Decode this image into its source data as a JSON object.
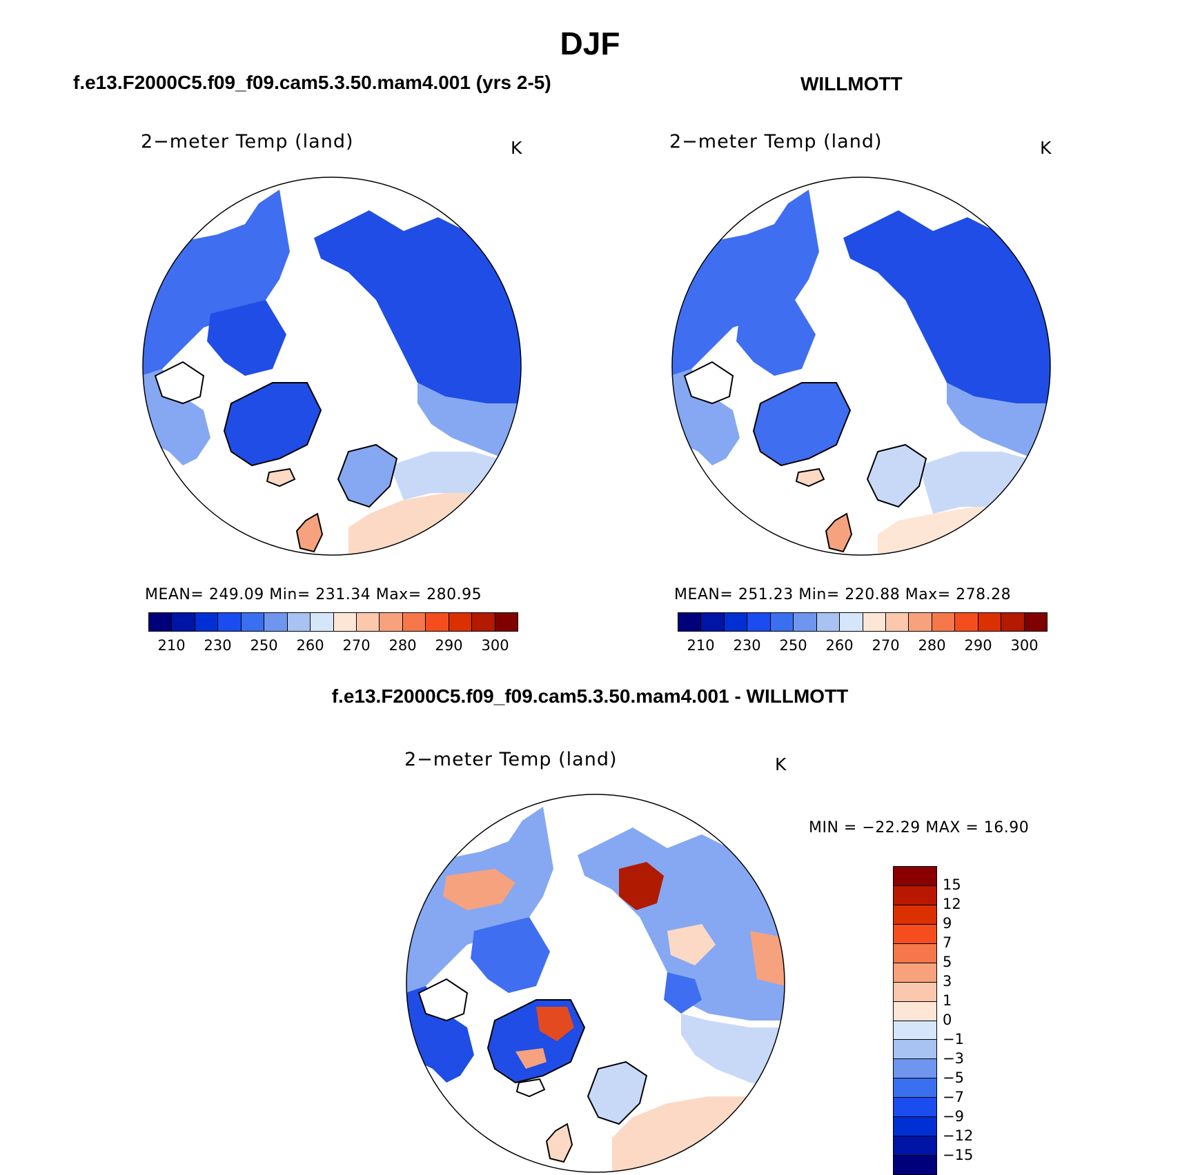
{
  "header": {
    "title": "DJF",
    "panel_left_title": "f.e13.F2000C5.f09_f09.cam5.3.50.mam4.001 (yrs 2-5)",
    "panel_right_title": "WILLMOTT",
    "panel_diff_title": "f.e13.F2000C5.f09_f09.cam5.3.50.mam4.001 - WILLMOTT"
  },
  "panels": {
    "left": {
      "variable": "2−meter Temp (land)",
      "unit": "K",
      "stats": "MEAN=  249.09    Min=  231.34    Max=  280.95"
    },
    "right": {
      "variable": "2−meter Temp (land)",
      "unit": "K",
      "stats": "MEAN=  251.23    Min=  220.88    Max=  278.28"
    },
    "diff": {
      "variable": "2−meter Temp (land)",
      "unit": "K",
      "stats": "MIN  =  −22.29  MAX  =    16.90"
    }
  },
  "colorbars": {
    "absolute": {
      "colors": [
        "#00007a",
        "#0014a6",
        "#0030d4",
        "#1a4cf0",
        "#3a6ff0",
        "#6f96ee",
        "#a8c2f2",
        "#d6e6fa",
        "#fde6d6",
        "#fbc8ae",
        "#f7a27c",
        "#f6784a",
        "#f54e1c",
        "#db3000",
        "#b31a00",
        "#800000"
      ],
      "tick_labels": [
        "210",
        "230",
        "250",
        "260",
        "270",
        "280",
        "290",
        "300"
      ]
    },
    "diff": {
      "colors_top_to_bottom": [
        "#8a0000",
        "#b81800",
        "#db3000",
        "#f54e1c",
        "#f6784a",
        "#f7a27c",
        "#fbc8ae",
        "#fde6d6",
        "#d6e6fa",
        "#a8c2f2",
        "#6f96ee",
        "#3a6ff0",
        "#1a4cf0",
        "#0030d4",
        "#0014a6",
        "#00007a"
      ],
      "tick_labels": [
        "15",
        "12",
        "9",
        "7",
        "5",
        "3",
        "1",
        "0",
        "−1",
        "−3",
        "−5",
        "−7",
        "−9",
        "−12",
        "−15"
      ]
    }
  },
  "map_colors": {
    "deep": "#1f4de6",
    "mid": "#3f6ef0",
    "light": "#86a8f2",
    "pale": "#c8d9f8",
    "warm_pale": "#fcd9c4",
    "warm": "#f6a27e",
    "hot": "#e44a20",
    "veryhot": "#b01a00"
  }
}
